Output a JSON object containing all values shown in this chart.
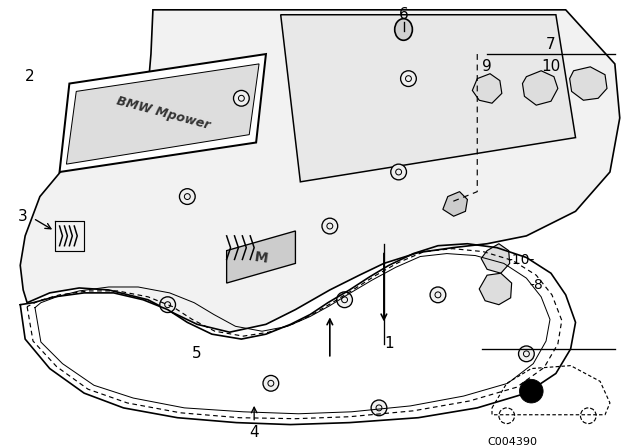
{
  "bg_color": "#ffffff",
  "line_color": "#000000",
  "diagram_code": "C004390",
  "fig_width": 6.4,
  "fig_height": 4.48,
  "dpi": 100
}
